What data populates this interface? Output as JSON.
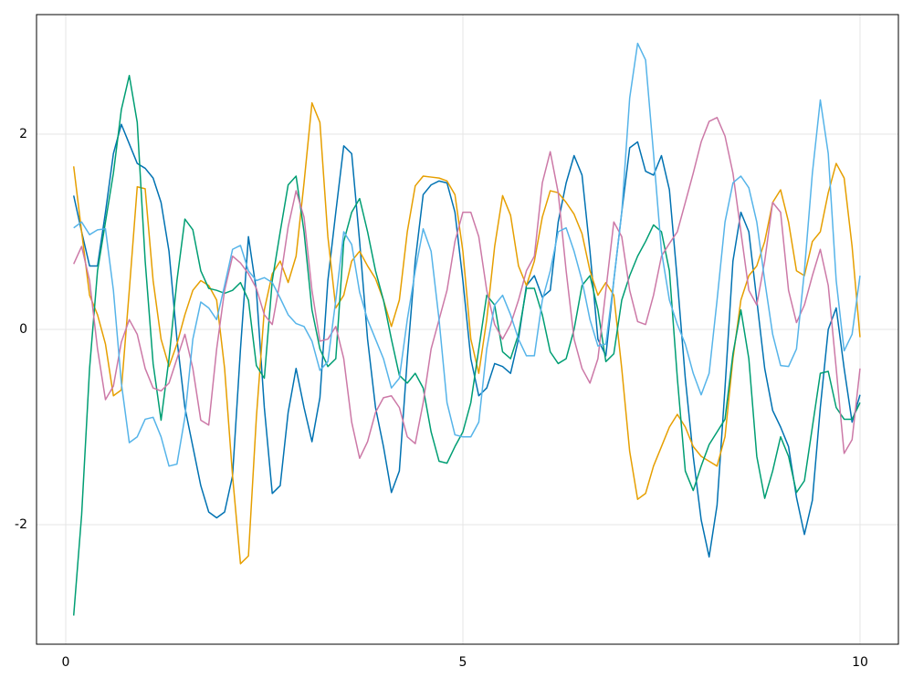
{
  "chart_data": {
    "type": "line",
    "x": [
      0.1,
      0.2,
      0.3,
      0.4,
      0.5,
      0.6,
      0.7,
      0.8,
      0.9,
      1,
      1.1,
      1.2,
      1.3,
      1.4,
      1.5,
      1.6,
      1.7,
      1.8,
      1.9,
      2,
      2.1,
      2.2,
      2.3,
      2.4,
      2.5,
      2.6,
      2.7,
      2.8,
      2.9,
      3,
      3.1,
      3.2,
      3.3,
      3.4,
      3.5,
      3.6,
      3.7,
      3.8,
      3.9,
      4,
      4.1,
      4.2,
      4.3,
      4.4,
      4.5,
      4.6,
      4.7,
      4.8,
      4.9,
      5,
      5.1,
      5.2,
      5.3,
      5.4,
      5.5,
      5.6,
      5.7,
      5.8,
      5.9,
      6,
      6.1,
      6.2,
      6.3,
      6.4,
      6.5,
      6.6,
      6.7,
      6.8,
      6.9,
      7,
      7.1,
      7.2,
      7.3,
      7.4,
      7.5,
      7.6,
      7.7,
      7.8,
      7.9,
      8,
      8.1,
      8.2,
      8.3,
      8.4,
      8.5,
      8.6,
      8.7,
      8.8,
      8.9,
      9,
      9.1,
      9.2,
      9.3,
      9.4,
      9.5,
      9.6,
      9.7,
      9.8,
      9.9,
      10
    ],
    "series": [
      {
        "color": "#0072b2",
        "values": [
          1.37,
          1.0,
          0.65,
          0.65,
          1.2,
          1.8,
          2.1,
          1.9,
          1.7,
          1.65,
          1.55,
          1.3,
          0.8,
          -0.1,
          -0.8,
          -1.2,
          -1.6,
          -1.87,
          -1.93,
          -1.87,
          -1.5,
          -0.2,
          0.95,
          0.4,
          -0.8,
          -1.68,
          -1.6,
          -0.85,
          -0.4,
          -0.8,
          -1.15,
          -0.7,
          0.5,
          1.2,
          1.88,
          1.8,
          0.9,
          -0.1,
          -0.8,
          -1.2,
          -1.67,
          -1.45,
          -0.3,
          0.7,
          1.38,
          1.48,
          1.52,
          1.5,
          1.2,
          0.5,
          -0.3,
          -0.68,
          -0.6,
          -0.35,
          -0.38,
          -0.45,
          -0.1,
          0.45,
          0.55,
          0.33,
          0.4,
          1.1,
          1.5,
          1.78,
          1.58,
          0.8,
          -0.1,
          -0.27,
          0.5,
          1.2,
          1.86,
          1.92,
          1.62,
          1.58,
          1.78,
          1.43,
          0.5,
          -0.5,
          -1.3,
          -1.95,
          -2.33,
          -1.8,
          -0.6,
          0.7,
          1.2,
          1.0,
          0.3,
          -0.4,
          -0.83,
          -1.0,
          -1.2,
          -1.72,
          -2.1,
          -1.75,
          -0.8,
          0.0,
          0.22,
          -0.4,
          -0.95,
          -0.67
        ]
      },
      {
        "color": "#e69f00",
        "values": [
          1.67,
          1.0,
          0.35,
          0.15,
          -0.15,
          -0.68,
          -0.62,
          0.4,
          1.46,
          1.44,
          0.5,
          -0.1,
          -0.38,
          -0.15,
          0.15,
          0.4,
          0.5,
          0.45,
          0.3,
          -0.4,
          -1.5,
          -2.4,
          -2.32,
          -0.9,
          0.2,
          0.57,
          0.7,
          0.48,
          0.75,
          1.5,
          2.32,
          2.12,
          0.95,
          0.22,
          0.35,
          0.7,
          0.8,
          0.65,
          0.52,
          0.3,
          0.03,
          0.3,
          1.0,
          1.47,
          1.57,
          1.56,
          1.55,
          1.52,
          1.38,
          0.8,
          -0.1,
          -0.45,
          0.1,
          0.85,
          1.37,
          1.17,
          0.65,
          0.45,
          0.7,
          1.15,
          1.42,
          1.4,
          1.3,
          1.18,
          0.98,
          0.6,
          0.35,
          0.48,
          0.35,
          -0.4,
          -1.25,
          -1.74,
          -1.68,
          -1.4,
          -1.2,
          -1.0,
          -0.87,
          -1.0,
          -1.2,
          -1.3,
          -1.35,
          -1.4,
          -1.1,
          -0.3,
          0.3,
          0.55,
          0.65,
          0.9,
          1.3,
          1.43,
          1.1,
          0.6,
          0.55,
          0.9,
          1.0,
          1.4,
          1.7,
          1.55,
          0.85,
          -0.08
        ]
      },
      {
        "color": "#009e73",
        "values": [
          -2.93,
          -1.9,
          -0.4,
          0.6,
          1.1,
          1.6,
          2.25,
          2.6,
          2.12,
          0.7,
          -0.35,
          -0.93,
          -0.3,
          0.5,
          1.13,
          1.02,
          0.6,
          0.42,
          0.4,
          0.37,
          0.4,
          0.48,
          0.3,
          -0.37,
          -0.5,
          0.5,
          1.0,
          1.48,
          1.57,
          1.0,
          0.2,
          -0.2,
          -0.38,
          -0.3,
          0.9,
          1.2,
          1.34,
          1.0,
          0.6,
          0.3,
          -0.1,
          -0.47,
          -0.55,
          -0.45,
          -0.6,
          -1.05,
          -1.35,
          -1.37,
          -1.2,
          -1.05,
          -0.75,
          -0.2,
          0.35,
          0.25,
          -0.23,
          -0.3,
          -0.05,
          0.42,
          0.42,
          0.15,
          -0.23,
          -0.35,
          -0.3,
          0.0,
          0.45,
          0.55,
          0.2,
          -0.33,
          -0.25,
          0.3,
          0.55,
          0.75,
          0.9,
          1.07,
          1.0,
          0.6,
          -0.5,
          -1.45,
          -1.65,
          -1.4,
          -1.18,
          -1.05,
          -0.92,
          -0.25,
          0.2,
          -0.3,
          -1.3,
          -1.73,
          -1.45,
          -1.1,
          -1.3,
          -1.67,
          -1.55,
          -1.0,
          -0.45,
          -0.43,
          -0.8,
          -0.92,
          -0.92,
          -0.75
        ]
      },
      {
        "color": "#cc79a7",
        "values": [
          0.67,
          0.85,
          0.5,
          -0.2,
          -0.72,
          -0.58,
          -0.13,
          0.1,
          -0.05,
          -0.4,
          -0.6,
          -0.63,
          -0.55,
          -0.3,
          -0.05,
          -0.4,
          -0.93,
          -0.98,
          -0.2,
          0.4,
          0.75,
          0.68,
          0.57,
          0.42,
          0.15,
          0.05,
          0.5,
          1.05,
          1.42,
          1.15,
          0.4,
          -0.12,
          -0.1,
          0.03,
          -0.3,
          -0.95,
          -1.32,
          -1.15,
          -0.85,
          -0.7,
          -0.68,
          -0.8,
          -1.1,
          -1.17,
          -0.75,
          -0.2,
          0.1,
          0.4,
          0.9,
          1.2,
          1.2,
          0.95,
          0.4,
          0.05,
          -0.1,
          0.05,
          0.3,
          0.6,
          0.75,
          1.5,
          1.82,
          1.4,
          0.6,
          -0.1,
          -0.4,
          -0.55,
          -0.3,
          0.4,
          1.1,
          0.95,
          0.4,
          0.08,
          0.05,
          0.35,
          0.75,
          0.88,
          1.0,
          1.3,
          1.6,
          1.92,
          2.13,
          2.17,
          1.98,
          1.6,
          1.0,
          0.4,
          0.25,
          0.7,
          1.3,
          1.2,
          0.4,
          0.07,
          0.25,
          0.55,
          0.82,
          0.45,
          -0.4,
          -1.27,
          -1.13,
          -0.4
        ]
      },
      {
        "color": "#56b4e9",
        "values": [
          1.04,
          1.1,
          0.97,
          1.02,
          1.03,
          0.4,
          -0.55,
          -1.16,
          -1.1,
          -0.92,
          -0.9,
          -1.1,
          -1.4,
          -1.38,
          -0.9,
          -0.1,
          0.28,
          0.22,
          0.1,
          0.45,
          0.82,
          0.86,
          0.6,
          0.5,
          0.53,
          0.48,
          0.32,
          0.15,
          0.06,
          0.03,
          -0.12,
          -0.42,
          -0.33,
          0.3,
          1.0,
          0.87,
          0.38,
          0.1,
          -0.1,
          -0.3,
          -0.6,
          -0.5,
          0.1,
          0.6,
          1.03,
          0.8,
          0.1,
          -0.75,
          -1.08,
          -1.1,
          -1.1,
          -0.95,
          -0.2,
          0.25,
          0.35,
          0.15,
          -0.1,
          -0.27,
          -0.27,
          0.3,
          0.6,
          1.0,
          1.04,
          0.8,
          0.5,
          0.1,
          -0.17,
          -0.15,
          0.5,
          1.2,
          2.37,
          2.93,
          2.76,
          1.8,
          0.8,
          0.3,
          0.05,
          -0.15,
          -0.45,
          -0.67,
          -0.45,
          0.3,
          1.1,
          1.5,
          1.57,
          1.45,
          1.1,
          0.5,
          -0.05,
          -0.37,
          -0.38,
          -0.2,
          0.6,
          1.6,
          2.35,
          1.8,
          0.5,
          -0.22,
          -0.05,
          0.55
        ]
      }
    ],
    "xlim": [
      -0.368,
      10.483
    ],
    "xticks": [
      0,
      5,
      10
    ],
    "ylim": [
      -3.224,
      3.224
    ],
    "yticks": [
      -2,
      0,
      2
    ],
    "grid": true
  }
}
